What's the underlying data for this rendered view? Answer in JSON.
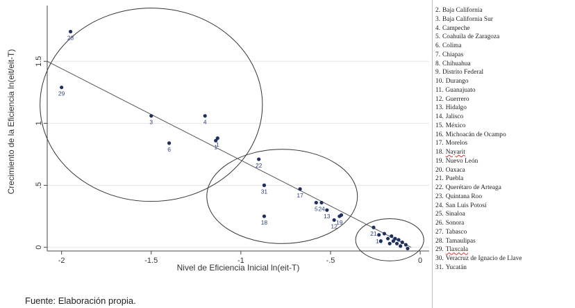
{
  "source_note": "Fuente: Elaboración propia.",
  "legend": [
    {
      "num": "2.",
      "name": "Baja California"
    },
    {
      "num": "3.",
      "name": "Baja California Sur"
    },
    {
      "num": "4.",
      "name": "Campeche"
    },
    {
      "num": "5.",
      "name": "Coahuila de Zaragoza"
    },
    {
      "num": "6.",
      "name": "Colima"
    },
    {
      "num": "7.",
      "name": "Chiapas"
    },
    {
      "num": "8.",
      "name": "Chihuahua"
    },
    {
      "num": "9.",
      "name": "Distrito Federal"
    },
    {
      "num": "10.",
      "name": "Durango"
    },
    {
      "num": "11.",
      "name": "Guanajuato"
    },
    {
      "num": "12.",
      "name": "Guerrero"
    },
    {
      "num": "13.",
      "name": "Hidalgo"
    },
    {
      "num": "14.",
      "name": "Jalisco"
    },
    {
      "num": "15.",
      "name": "México"
    },
    {
      "num": "16.",
      "name": "Michoacán de Ocampo"
    },
    {
      "num": "17.",
      "name": "Morelos"
    },
    {
      "num": "18.",
      "name": "Nayarit",
      "flag": true
    },
    {
      "num": "19.",
      "name": "Nuevo León"
    },
    {
      "num": "20.",
      "name": "Oaxaca"
    },
    {
      "num": "21.",
      "name": "Puebla"
    },
    {
      "num": "22.",
      "name": "Querétaro de Arteaga"
    },
    {
      "num": "23.",
      "name": "Quintana Roo"
    },
    {
      "num": "24.",
      "name": "San Luis Potosí"
    },
    {
      "num": "25.",
      "name": "Sinaloa"
    },
    {
      "num": "26.",
      "name": "Sonora"
    },
    {
      "num": "27.",
      "name": "Tabasco"
    },
    {
      "num": "28.",
      "name": "Tamaulipas"
    },
    {
      "num": "29.",
      "name": "Tlaxcala",
      "flag": true
    },
    {
      "num": "30.",
      "name": "Veracruz de Ignacio de Llave"
    },
    {
      "num": "31.",
      "name": "Yucatán"
    }
  ],
  "chart_data": {
    "type": "scatter",
    "title": "",
    "xlabel": "Nivel de Eficiencia Inicial ln(eit-T)",
    "ylabel": "Crecimiento de la Eficiencia ln(eit/eit-T)",
    "xlim": [
      -2.08,
      0.05
    ],
    "ylim": [
      -0.03,
      1.95
    ],
    "xticks": [
      -2,
      -1.5,
      -1,
      -0.5,
      0
    ],
    "xtick_labels": [
      "-2",
      "-1.5",
      "-1",
      "-.5",
      "0"
    ],
    "yticks": [
      0,
      0.5,
      1,
      1.5
    ],
    "ytick_labels": [
      "0",
      ".5",
      "1",
      "1.5"
    ],
    "grid": "horizontal",
    "point_color": "#1f2f5e",
    "line_color": "#555555",
    "circle_color": "#333333",
    "points": [
      {
        "label": "23",
        "x": -1.95,
        "y": 1.74
      },
      {
        "label": "29",
        "x": -2.0,
        "y": 1.29
      },
      {
        "label": "3",
        "x": -1.5,
        "y": 1.06
      },
      {
        "label": "4",
        "x": -1.2,
        "y": 1.06
      },
      {
        "label": "6",
        "x": -1.4,
        "y": 0.84
      },
      {
        "label": "1",
        "x": -1.13,
        "y": 0.88
      },
      {
        "label": "1",
        "x": -1.14,
        "y": 0.86
      },
      {
        "label": "22",
        "x": -0.9,
        "y": 0.71
      },
      {
        "label": "31",
        "x": -0.87,
        "y": 0.5
      },
      {
        "label": "17",
        "x": -0.67,
        "y": 0.47
      },
      {
        "label": "18",
        "x": -0.87,
        "y": 0.25
      },
      {
        "label": "5",
        "x": -0.58,
        "y": 0.36
      },
      {
        "label": "24",
        "x": -0.55,
        "y": 0.36
      },
      {
        "label": "13",
        "x": -0.52,
        "y": 0.3
      },
      {
        "label": "12",
        "x": -0.48,
        "y": 0.22
      },
      {
        "label": "19",
        "x": -0.45,
        "y": 0.25
      },
      {
        "label": "",
        "x": -0.44,
        "y": 0.26
      },
      {
        "label": "21",
        "x": -0.26,
        "y": 0.16
      },
      {
        "label": "14",
        "x": -0.23,
        "y": 0.1
      },
      {
        "label": "",
        "x": -0.2,
        "y": 0.11
      },
      {
        "label": "",
        "x": -0.22,
        "y": 0.05
      },
      {
        "label": "",
        "x": -0.18,
        "y": 0.07
      },
      {
        "label": "",
        "x": -0.17,
        "y": 0.03
      },
      {
        "label": "",
        "x": -0.16,
        "y": 0.09
      },
      {
        "label": "",
        "x": -0.15,
        "y": 0.05
      },
      {
        "label": "",
        "x": -0.14,
        "y": 0.07
      },
      {
        "label": "",
        "x": -0.13,
        "y": 0.03
      },
      {
        "label": "",
        "x": -0.12,
        "y": 0.06
      },
      {
        "label": "",
        "x": -0.11,
        "y": 0.01
      },
      {
        "label": "",
        "x": -0.1,
        "y": 0.04
      },
      {
        "label": "",
        "x": -0.08,
        "y": 0.02
      },
      {
        "label": "",
        "x": -0.07,
        "y": -0.01
      }
    ],
    "fit_line": {
      "x": [
        -2.08,
        -0.05
      ],
      "y": [
        1.5,
        0.0
      ]
    },
    "clusters": [
      {
        "cx": -1.5,
        "cy": 1.15,
        "rx": 0.62,
        "ry": 0.78
      },
      {
        "cx": -0.77,
        "cy": 0.41,
        "rx": 0.42,
        "ry": 0.38
      },
      {
        "cx": -0.17,
        "cy": 0.06,
        "rx": 0.19,
        "ry": 0.17
      }
    ]
  }
}
